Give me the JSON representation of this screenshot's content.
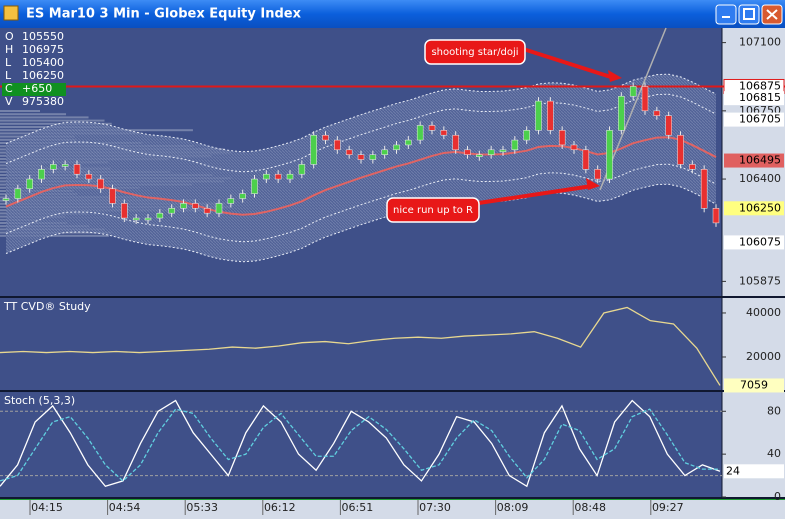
{
  "window": {
    "title": "ES Mar10 3 Min - Globex Equity Index"
  },
  "chart_data": [
    {
      "type": "candlestick",
      "summary": [
        [
          "O",
          "105550"
        ],
        [
          "H",
          "106975"
        ],
        [
          "L",
          "105400"
        ],
        [
          "L",
          "106250"
        ],
        [
          "C",
          "+650"
        ],
        [
          "V",
          "975380"
        ]
      ],
      "values": [
        106300,
        106350,
        106400,
        106450,
        106475,
        106475,
        106425,
        106400,
        106350,
        106275,
        106200,
        106200,
        106200,
        106225,
        106250,
        106275,
        106250,
        106225,
        106275,
        106300,
        106325,
        106400,
        106425,
        106400,
        106425,
        106475,
        106625,
        106600,
        106550,
        106525,
        106500,
        106525,
        106550,
        106575,
        106600,
        106675,
        106650,
        106625,
        106550,
        106525,
        106525,
        106550,
        106550,
        106600,
        106650,
        106800,
        106650,
        106575,
        106550,
        106450,
        106400,
        106650,
        106825,
        106875,
        106750,
        106725,
        106625,
        106475,
        106450,
        106250,
        106175
      ],
      "up_color": "#4cd04c",
      "down_color": "#e83030",
      "ylim": [
        105800,
        107175
      ],
      "yticks": [
        105875,
        106400,
        106750,
        107100
      ],
      "markers": [
        {
          "value": 106815,
          "bg": "#ffffff"
        },
        {
          "value": 106705,
          "bg": "#ffffff"
        },
        {
          "value": 106495,
          "bg": "#e06060"
        },
        {
          "value": 106250,
          "bg": "#ffff80"
        },
        {
          "value": 106075,
          "bg": "#ffffff"
        }
      ],
      "hline": {
        "value": 106875,
        "color": "#e01818"
      },
      "annotations": [
        "shooting star/doji",
        "nice run up to R"
      ]
    },
    {
      "type": "line",
      "title": "TT CVD® Study",
      "color": "#e8d890",
      "values": [
        22000,
        22500,
        22000,
        22500,
        22000,
        22500,
        22000,
        22500,
        23000,
        23500,
        24500,
        24000,
        25000,
        26500,
        27000,
        26000,
        27500,
        28500,
        29000,
        28500,
        29500,
        30000,
        30500,
        31500,
        28500,
        24500,
        40000,
        42500,
        36500,
        35000,
        24000,
        7059
      ],
      "ylim": [
        5000,
        46800
      ],
      "yticks": [
        20000,
        40000
      ]
    },
    {
      "type": "line",
      "title": "Stoch (5,3,3)",
      "series": [
        {
          "color": "#ffffff",
          "values": [
            10,
            30,
            70,
            85,
            60,
            30,
            10,
            15,
            50,
            80,
            90,
            60,
            40,
            20,
            60,
            85,
            70,
            40,
            25,
            50,
            80,
            70,
            55,
            30,
            15,
            40,
            75,
            70,
            50,
            20,
            10,
            60,
            85,
            45,
            20,
            70,
            90,
            75,
            40,
            20,
            30,
            24
          ]
        },
        {
          "color": "#60d0e0",
          "values": [
            15,
            20,
            45,
            70,
            75,
            55,
            30,
            15,
            30,
            60,
            82,
            78,
            55,
            35,
            40,
            65,
            78,
            58,
            38,
            38,
            62,
            75,
            63,
            45,
            25,
            30,
            55,
            72,
            62,
            38,
            18,
            35,
            68,
            62,
            35,
            45,
            75,
            82,
            58,
            32,
            26,
            26
          ]
        }
      ],
      "levels": [
        20,
        80
      ],
      "ylim": [
        0,
        98
      ],
      "yticks": [
        0,
        40,
        80
      ]
    }
  ],
  "time_labels": [
    "04:15",
    "04:54",
    "05:33",
    "06:12",
    "06:51",
    "07:30",
    "08:09",
    "08:48",
    "09:27"
  ]
}
